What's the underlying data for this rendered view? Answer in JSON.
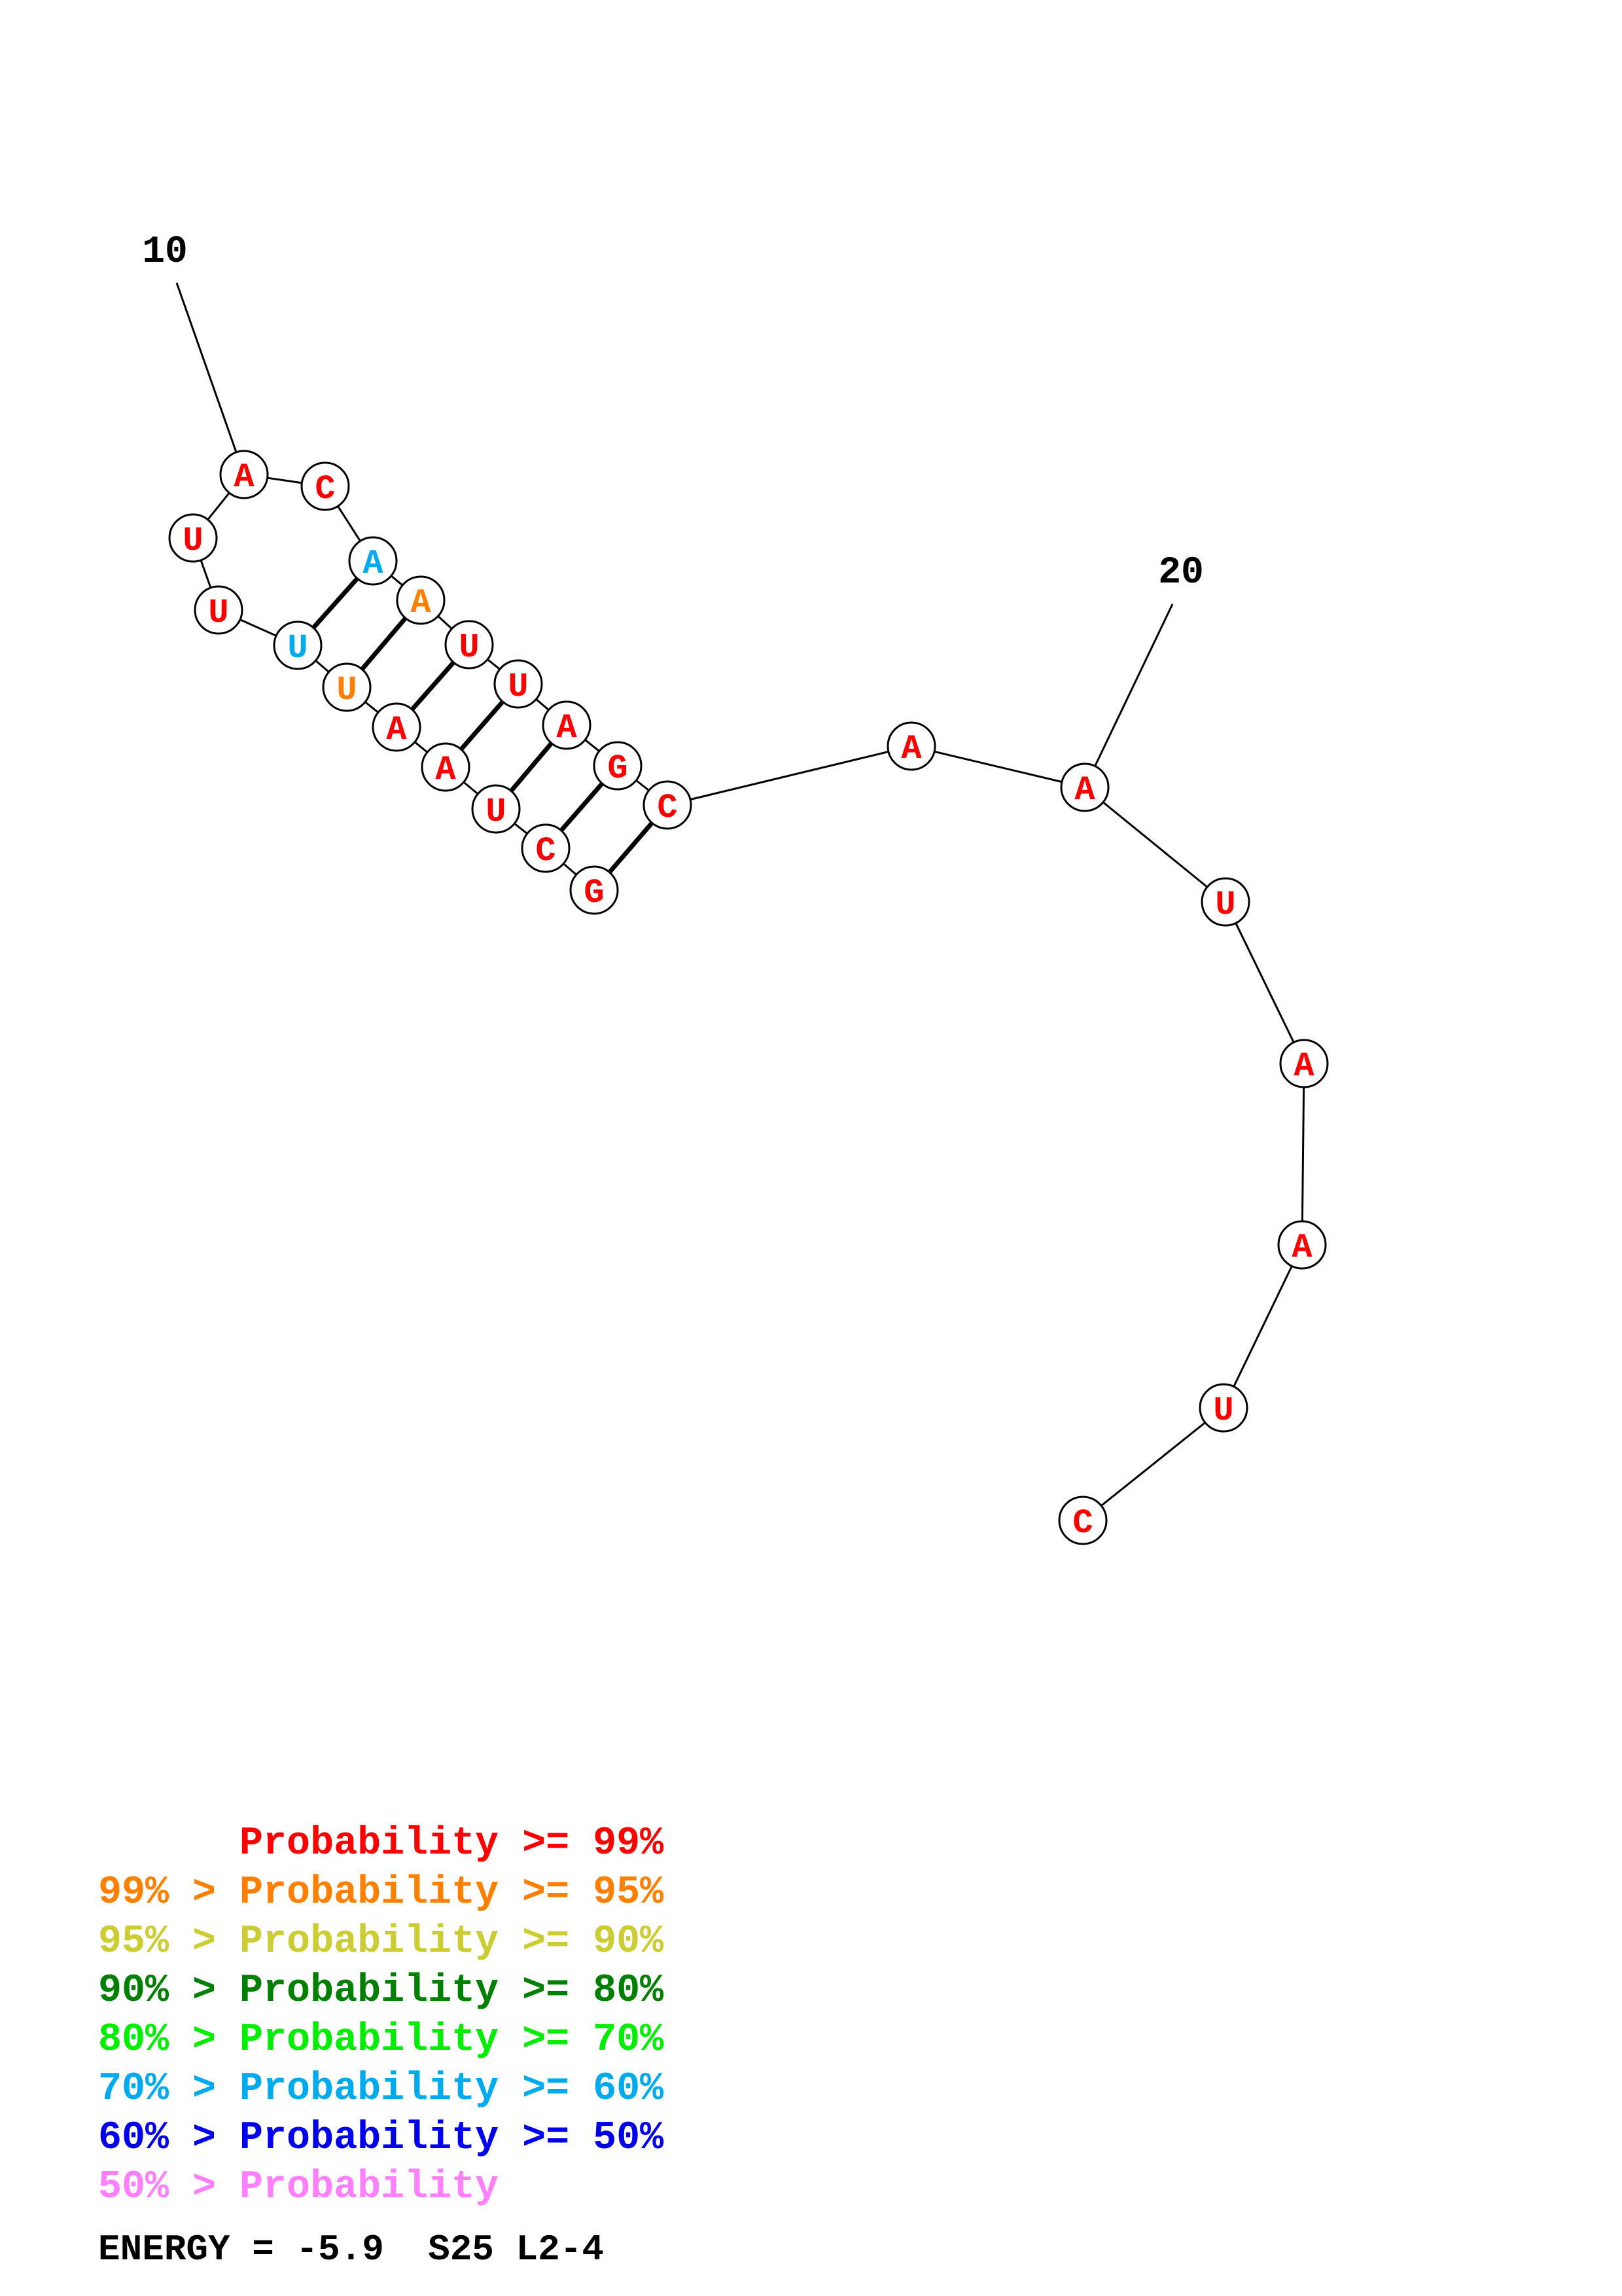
{
  "colors": {
    "p99": "#ff0000",
    "p95": "#ff8000",
    "p90": "#cccc33",
    "p80": "#008000",
    "p70": "#00ee00",
    "p60": "#00aaee",
    "p50": "#0000ee",
    "below50": "#ff80ff"
  },
  "structure": {
    "nucleotides": [
      {
        "base": "A",
        "prob_class": "p99"
      },
      {
        "base": "U",
        "prob_class": "p99"
      },
      {
        "base": "U",
        "prob_class": "p99"
      },
      {
        "base": "U",
        "prob_class": "p60"
      },
      {
        "base": "U",
        "prob_class": "p95"
      },
      {
        "base": "A",
        "prob_class": "p99"
      },
      {
        "base": "A",
        "prob_class": "p99"
      },
      {
        "base": "U",
        "prob_class": "p99"
      },
      {
        "base": "C",
        "prob_class": "p99"
      },
      {
        "base": "G",
        "prob_class": "p99"
      },
      {
        "base": "C",
        "prob_class": "p99"
      },
      {
        "base": "G",
        "prob_class": "p99"
      },
      {
        "base": "A",
        "prob_class": "p99"
      },
      {
        "base": "U",
        "prob_class": "p99"
      },
      {
        "base": "U",
        "prob_class": "p99"
      },
      {
        "base": "A",
        "prob_class": "p95"
      },
      {
        "base": "A",
        "prob_class": "p60"
      },
      {
        "base": "C",
        "prob_class": "p99"
      },
      {
        "base": "A",
        "prob_class": "p99"
      },
      {
        "base": "A",
        "prob_class": "p99"
      },
      {
        "base": "U",
        "prob_class": "p99"
      },
      {
        "base": "A",
        "prob_class": "p99"
      },
      {
        "base": "A",
        "prob_class": "p99"
      },
      {
        "base": "U",
        "prob_class": "p99"
      },
      {
        "base": "C",
        "prob_class": "p99"
      }
    ],
    "pairs": [
      [
        4,
        17
      ],
      [
        5,
        16
      ],
      [
        6,
        15
      ],
      [
        7,
        14
      ],
      [
        8,
        13
      ],
      [
        9,
        12
      ],
      [
        10,
        11
      ],
      [
        11,
        10
      ]
    ],
    "index_labels": [
      {
        "label": "10",
        "index": 1
      },
      {
        "label": "20",
        "index": 20
      }
    ]
  },
  "legend": [
    {
      "prefix": "    ",
      "text": "Probability >= 99%",
      "color_key": "p99"
    },
    {
      "prefix": "99% > ",
      "text": "Probability >= 95%",
      "color_key": "p95"
    },
    {
      "prefix": "95% > ",
      "text": "Probability >= 90%",
      "color_key": "p90"
    },
    {
      "prefix": "90% > ",
      "text": "Probability >= 80%",
      "color_key": "p80"
    },
    {
      "prefix": "80% > ",
      "text": "Probability >= 70%",
      "color_key": "p70"
    },
    {
      "prefix": "70% > ",
      "text": "Probability >= 60%",
      "color_key": "p60"
    },
    {
      "prefix": "60% > ",
      "text": "Probability >= 50%",
      "color_key": "p50"
    },
    {
      "prefix": "50% > ",
      "text": "Probability",
      "color_key": "below50"
    }
  ],
  "energy_text": "ENERGY = -5.9  S25 L2-4"
}
